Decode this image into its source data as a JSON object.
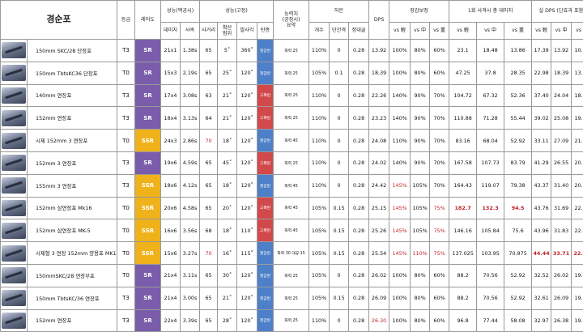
{
  "header": {
    "title": "경순포",
    "grade": "등급",
    "rarity": "레어도",
    "perf_moving": "성능(맥공시)",
    "damage": "데미지",
    "speed": "사속",
    "perf_fixed": "성능(고정)",
    "range": "사거리",
    "spread": "확산\n범위",
    "arc": "발사각",
    "ammo": "탄종",
    "ability": "능력치\n(공장시)\n요약",
    "bullets": "하든",
    "count": "개수",
    "interval": "단간격",
    "reload": "정대골",
    "dps": "DPS",
    "armor_mod": "장갑보정",
    "salvo_damage": "1회 사격시 총 데미지",
    "real_dps": "실 DPS (단효과 포함)",
    "vs_light": "vs 輕",
    "vs_medium": "vs 中",
    "vs_heavy": "vs 重"
  },
  "rows": [
    {
      "name": "150mm SKC/28 단장포",
      "grade": "T3",
      "rarity": "SR",
      "damage": "21x1",
      "speed": "1.38s",
      "range": "65",
      "spread": "5˚",
      "arc": "360˚",
      "ammo": "철갑탄",
      "ammo_color": "blue",
      "ability": "화력 25",
      "bullet": "110%",
      "count": "0",
      "interval": "0.28",
      "dps": "13.92",
      "al": "100%",
      "am": "80%",
      "ah": "60%",
      "sl": "23.1",
      "sm": "18.48",
      "sh": "13.86",
      "rl": "17.39",
      "rm": "13.92",
      "rh": "10.44"
    },
    {
      "name": "150mm TbtsKC36 단장포",
      "grade": "T0",
      "rarity": "SR",
      "damage": "15x3",
      "speed": "2.19s",
      "range": "65",
      "spread": "25˚",
      "arc": "120˚",
      "ammo": "철갑탄",
      "ammo_color": "blue",
      "ability": "화력 25",
      "bullet": "105%",
      "count": "0.1",
      "interval": "0.28",
      "dps": "18.39",
      "al": "100%",
      "am": "80%",
      "ah": "60%",
      "sl": "47.25",
      "sm": "37.8",
      "sh": "28.35",
      "rl": "22.98",
      "rm": "18.39",
      "rh": "13.79"
    },
    {
      "name": "140mm 연장포",
      "grade": "T3",
      "rarity": "SR",
      "damage": "17x4",
      "speed": "3.08s",
      "range": "63",
      "spread": "21˚",
      "arc": "120˚",
      "ammo": "고폭탄",
      "ammo_color": "red",
      "ability": "화력 25",
      "bullet": "110%",
      "count": "0",
      "interval": "0.28",
      "dps": "22.26",
      "al": "140%",
      "am": "90%",
      "ah": "70%",
      "sl": "104.72",
      "sm": "67.32",
      "sh": "52.36",
      "rl": "37.40",
      "rm": "24.04",
      "rh": "18.70"
    },
    {
      "name": "152mm 연장포",
      "grade": "T3",
      "rarity": "SR",
      "damage": "18x4",
      "speed": "3.13s",
      "range": "64",
      "spread": "21˚",
      "arc": "120˚",
      "ammo": "고폭탄",
      "ammo_color": "red",
      "ability": "화력 25",
      "bullet": "110%",
      "count": "0",
      "interval": "0.28",
      "dps": "23.23",
      "al": "140%",
      "am": "90%",
      "ah": "70%",
      "sl": "110.88",
      "sm": "71.28",
      "sh": "55.44",
      "rl": "39.02",
      "rm": "25.08",
      "rh": "19.51"
    },
    {
      "name": "시제 152mm 3 연장포",
      "grade": "T0",
      "rarity": "SSR",
      "damage": "24x3",
      "speed": "2.86s",
      "range": "70",
      "spread": "18˚",
      "arc": "120˚",
      "ammo": "철갑탄",
      "ammo_color": "blue",
      "ability": "화력 45",
      "bullet": "110%",
      "count": "0",
      "interval": "0.28",
      "dps": "24.08",
      "al": "110%",
      "am": "90%",
      "ah": "70%",
      "sl": "83.16",
      "sm": "68.04",
      "sh": "52.92",
      "rl": "33.11",
      "rm": "27.09",
      "rh": "21.07"
    },
    {
      "name": "152mm 3 연장포",
      "grade": "T3",
      "rarity": "SR",
      "damage": "19x6",
      "speed": "4.59s",
      "range": "65",
      "spread": "45˚",
      "arc": "120˚",
      "ammo": "고폭탄",
      "ammo_color": "red",
      "ability": "화력 25",
      "bullet": "110%",
      "count": "0",
      "interval": "0.28",
      "dps": "24.02",
      "al": "140%",
      "am": "90%",
      "ah": "70%",
      "sl": "167.58",
      "sm": "107.73",
      "sh": "83.79",
      "rl": "41.29",
      "rm": "26.55",
      "rh": "20.65"
    },
    {
      "name": "155mm 3 연장포",
      "grade": "T3",
      "rarity": "SSR",
      "damage": "18x6",
      "speed": "4.12s",
      "range": "65",
      "spread": "18˚",
      "arc": "120˚",
      "ammo": "철갑탄",
      "ammo_color": "blue",
      "ability": "화력 45",
      "bullet": "110%",
      "count": "0",
      "interval": "0.28",
      "dps": "24.42",
      "al": "145%",
      "am": "105%",
      "ah": "70%",
      "sl": "164.43",
      "sm": "119.07",
      "sh": "79.38",
      "rl": "43.37",
      "rm": "31.40",
      "rh": "20.94"
    },
    {
      "name": "152mm 삼연장포 Mk16",
      "grade": "T0",
      "rarity": "SSR",
      "damage": "20x6",
      "speed": "4.58s",
      "range": "65",
      "spread": "20˚",
      "arc": "120˚",
      "ammo": "고폭탄",
      "ammo_color": "red",
      "ability": "화력 45",
      "bullet": "105%",
      "count": "0.15",
      "interval": "0.28",
      "dps": "25.15",
      "al": "145%",
      "am": "105%",
      "ah": "75%",
      "sl": "182.7",
      "sm": "132.3",
      "sh": "94.5",
      "rl": "43.76",
      "rm": "31.69",
      "rh": "22.63"
    },
    {
      "name": "152mm 삼연장포 MK-5",
      "grade": "T0",
      "rarity": "SSR",
      "damage": "16x6",
      "speed": "3.56s",
      "range": "68",
      "spread": "18˚",
      "arc": "110˚",
      "ammo": "고폭탄",
      "ammo_color": "red",
      "ability": "화력 45",
      "bullet": "105%",
      "count": "0.15",
      "interval": "0.28",
      "dps": "25.26",
      "al": "145%",
      "am": "105%",
      "ah": "75%",
      "sl": "146.16",
      "sm": "105.84",
      "sh": "75.6",
      "rl": "43.96",
      "rm": "31.83",
      "rh": "22.74"
    },
    {
      "name": "시제형 3 연장 152mm 양용포 MK17",
      "grade": "T0",
      "rarity": "SSR",
      "damage": "15x6",
      "speed": "3.27s",
      "range": "70",
      "spread": "16˚",
      "arc": "115˚",
      "ammo": "철갑탄",
      "ammo_color": "blue",
      "ability": "화력 30 대공 15",
      "bullet": "105%",
      "count": "0.15",
      "interval": "0.28",
      "dps": "25.54",
      "al": "145%",
      "am": "110%",
      "ah": "75%",
      "sl": "137.025",
      "sm": "103.95",
      "sh": "70.875",
      "rl": "44.44",
      "rm": "33.71",
      "rh": "22.99"
    },
    {
      "name": "150mmSKC/28 연장부포",
      "grade": "T0",
      "rarity": "SR",
      "damage": "21x4",
      "speed": "3.11s",
      "range": "65",
      "spread": "30˚",
      "arc": "120˚",
      "ammo": "철갑탄",
      "ammo_color": "blue",
      "ability": "화력 25",
      "bullet": "105%",
      "count": "0",
      "interval": "0.28",
      "dps": "26.02",
      "al": "100%",
      "am": "80%",
      "ah": "60%",
      "sl": "88.2",
      "sm": "70.56",
      "sh": "52.92",
      "rl": "32.52",
      "rm": "26.02",
      "rh": "19.51"
    },
    {
      "name": "150mm TbtsKC/36 연장포",
      "grade": "T3",
      "rarity": "SR",
      "damage": "21x4",
      "speed": "3.00s",
      "range": "65",
      "spread": "21˚",
      "arc": "120˚",
      "ammo": "철갑탄",
      "ammo_color": "blue",
      "ability": "화력 25",
      "bullet": "105%",
      "count": "0.15",
      "interval": "0.28",
      "dps": "26.09",
      "al": "100%",
      "am": "80%",
      "ah": "60%",
      "sl": "88.2",
      "sm": "70.56",
      "sh": "52.92",
      "rl": "32.61",
      "rm": "26.09",
      "rh": "19.57"
    },
    {
      "name": "152mm 연장포",
      "grade": "T3",
      "rarity": "SR",
      "damage": "22x4",
      "speed": "3.39s",
      "range": "65",
      "spread": "28˚",
      "arc": "120˚",
      "ammo": "철갑탄",
      "ammo_color": "blue",
      "ability": "화력 25",
      "bullet": "110%",
      "count": "0",
      "interval": "0.28",
      "dps": "26.30",
      "dps_red": true,
      "al": "100%",
      "am": "80%",
      "ah": "60%",
      "sl": "96.8",
      "sm": "77.44",
      "sh": "58.08",
      "rl": "32.97",
      "rm": "26.38",
      "rh": "19.78"
    }
  ]
}
